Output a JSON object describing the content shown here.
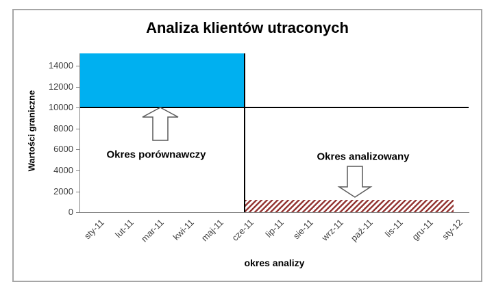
{
  "chart_data": {
    "type": "area",
    "title": "Analiza klientów utraconych",
    "xlabel": "okres analizy",
    "ylabel": "Wartości graniczne",
    "categories": [
      "sty-11",
      "lut-11",
      "mar-11",
      "kwi-11",
      "maj-11",
      "cze-11",
      "lip-11",
      "sie-11",
      "wrz-11",
      "paź-11",
      "lis-11",
      "gru-11",
      "sty-12"
    ],
    "ylim": [
      0,
      15200
    ],
    "yticks": [
      0,
      2000,
      4000,
      6000,
      8000,
      10000,
      12000,
      14000
    ],
    "grid": "off",
    "legend": "none",
    "series": [
      {
        "name": "Okres porównawczy",
        "role": "comparison-period-band",
        "category_start": 0,
        "category_end": 5,
        "align_start": "axis-edge",
        "align_end": "center",
        "value_low": 10000,
        "value_high": 15200,
        "fill": "#00b0f0",
        "pattern": "solid"
      },
      {
        "name": "Okres analizowany",
        "role": "analyzed-period-band",
        "category_start": 5,
        "category_end": 12,
        "align_start": "center",
        "align_end": "center",
        "value_low": 0,
        "value_high": 1200,
        "fill": "#943634",
        "pattern": "diagonal-stripes"
      }
    ],
    "threshold_line": {
      "value": 10000,
      "color": "#000000"
    },
    "divider_line": {
      "category_index": 5,
      "color": "#000000"
    },
    "annotations": [
      {
        "label": "Okres porównawczy",
        "arrow": "up"
      },
      {
        "label": "Okres analizowany",
        "arrow": "down"
      }
    ],
    "colors": {
      "comparison_fill": "#00b0f0",
      "analyzed_stripe": "#943634",
      "axis_line": "#808080",
      "tick_text": "#3f3f3f",
      "frame_border": "#a6a6a6",
      "arrow_outline": "#595959"
    }
  }
}
